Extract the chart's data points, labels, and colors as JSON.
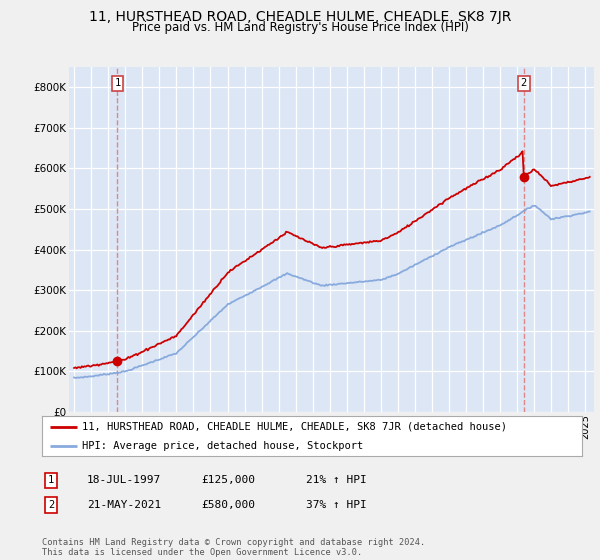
{
  "title": "11, HURSTHEAD ROAD, CHEADLE HULME, CHEADLE, SK8 7JR",
  "subtitle": "Price paid vs. HM Land Registry's House Price Index (HPI)",
  "ylim": [
    0,
    850000
  ],
  "yticks": [
    0,
    100000,
    200000,
    300000,
    400000,
    500000,
    600000,
    700000,
    800000
  ],
  "ytick_labels": [
    "£0",
    "£100K",
    "£200K",
    "£300K",
    "£400K",
    "£500K",
    "£600K",
    "£700K",
    "£800K"
  ],
  "xlim_min": 1994.7,
  "xlim_max": 2025.5,
  "sale1_date": 1997.54,
  "sale1_price": 125000,
  "sale2_date": 2021.38,
  "sale2_price": 580000,
  "legend_line1": "11, HURSTHEAD ROAD, CHEADLE HULME, CHEADLE, SK8 7JR (detached house)",
  "legend_line2": "HPI: Average price, detached house, Stockport",
  "info1_label": "1",
  "info1_date": "18-JUL-1997",
  "info1_price": "£125,000",
  "info1_hpi": "21% ↑ HPI",
  "info2_label": "2",
  "info2_date": "21-MAY-2021",
  "info2_price": "£580,000",
  "info2_hpi": "37% ↑ HPI",
  "footer": "Contains HM Land Registry data © Crown copyright and database right 2024.\nThis data is licensed under the Open Government Licence v3.0.",
  "fig_bg_color": "#f0f0f0",
  "plot_bg_color": "#dce6f5",
  "grid_color": "#ffffff",
  "red_line_color": "#cc0000",
  "blue_line_color": "#88aadd",
  "sale_marker_color": "#cc0000",
  "dashed_line_color": "#dd8888",
  "box_edge_color": "#cc4444",
  "title_fontsize": 10,
  "subtitle_fontsize": 8.5,
  "tick_fontsize": 7,
  "legend_fontsize": 7.5,
  "info_fontsize": 8
}
